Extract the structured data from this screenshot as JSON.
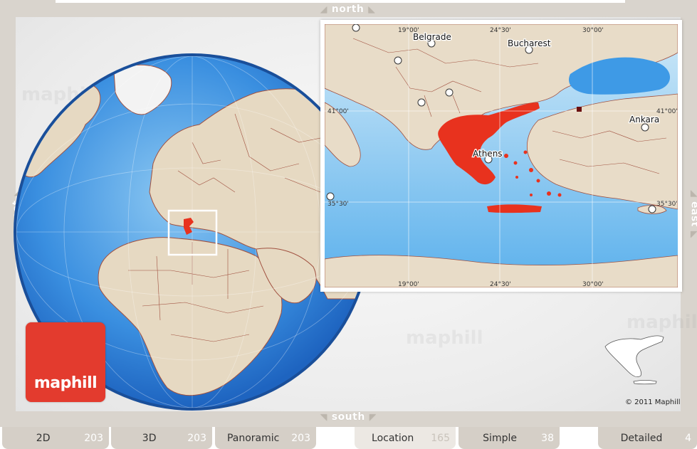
{
  "directions": {
    "north": "north",
    "south": "south",
    "west": "west",
    "east": "east"
  },
  "brand": {
    "logo_text": "maphill",
    "watermark": "maphill",
    "copyright": "© 2011 Maphill"
  },
  "colors": {
    "highlight": "#e8321e",
    "sea_deep": "#2f7fd8",
    "sea_light": "#b9def5",
    "land": "#e8dcc8",
    "border": "#9b4a3c",
    "frame": "#d9d4cd",
    "tab": "#d5cfc7"
  },
  "inset_map": {
    "cities": [
      {
        "name": "Belgrade"
      },
      {
        "name": "Bucharest"
      },
      {
        "name": "Athens"
      },
      {
        "name": "Ankara"
      }
    ],
    "top_graticule": [
      "19°00'",
      "24°30'",
      "30°00'"
    ],
    "bottom_graticule": [
      "19°00'",
      "24°30'",
      "30°00'"
    ],
    "left_graticule": [
      "41°00'",
      "35°30'"
    ],
    "right_graticule": [
      "41°00'",
      "35°30'"
    ]
  },
  "tabs": [
    {
      "label": "2D",
      "count": "203"
    },
    {
      "label": "3D",
      "count": "203"
    },
    {
      "label": "Panoramic",
      "count": "203"
    },
    {
      "label": "Location",
      "count": "165"
    },
    {
      "label": "Simple",
      "count": "38"
    },
    {
      "label": "Detailed",
      "count": "4"
    }
  ]
}
